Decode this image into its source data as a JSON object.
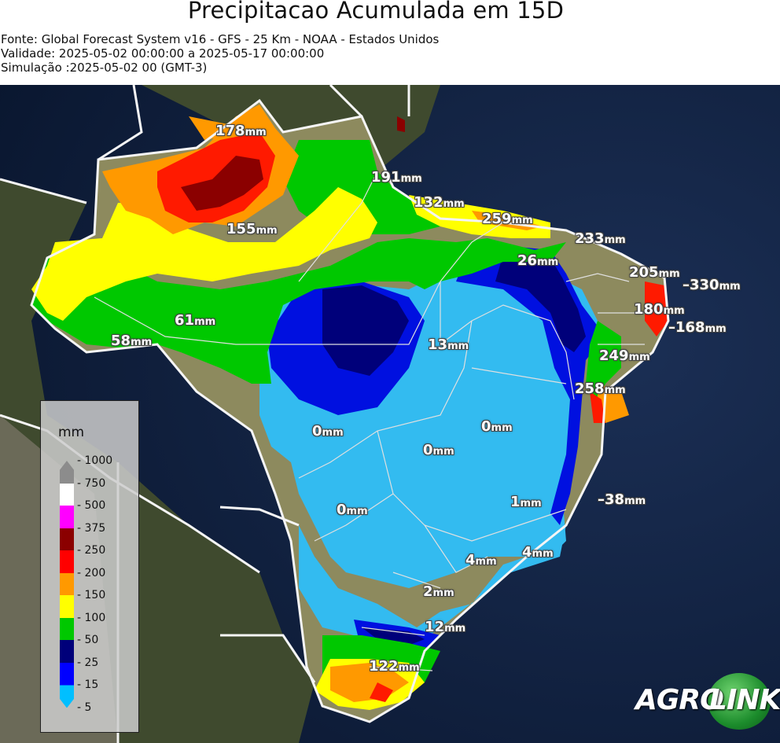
{
  "header": {
    "title": "Precipitacao Acumulada em 15D",
    "source": "Fonte: Global Forecast System v16 - GFS - 25 Km - NOAA - Estados Unidos",
    "validity": "Validade: 2025-05-02 00:00:00 a 2025-05-17 00:00:00",
    "simulation": "Simulação :2025-05-02 00 (GMT-3)"
  },
  "map": {
    "labels": [
      {
        "value": "178",
        "unit": "mm"
      },
      {
        "value": "191",
        "unit": "mm"
      },
      {
        "value": "132",
        "unit": "mm"
      },
      {
        "value": "155",
        "unit": "mm"
      },
      {
        "value": "259",
        "unit": "mm"
      },
      {
        "value": "233",
        "unit": "mm"
      },
      {
        "value": "26",
        "unit": "mm"
      },
      {
        "value": "205",
        "unit": "mm"
      },
      {
        "value": "330",
        "unit": "mm"
      },
      {
        "value": "180",
        "unit": "mm"
      },
      {
        "value": "168",
        "unit": "mm"
      },
      {
        "value": "61",
        "unit": "mm"
      },
      {
        "value": "58",
        "unit": "mm"
      },
      {
        "value": "13",
        "unit": "mm"
      },
      {
        "value": "249",
        "unit": "mm"
      },
      {
        "value": "258",
        "unit": "mm"
      },
      {
        "value": "0",
        "unit": "mm"
      },
      {
        "value": "0",
        "unit": "mm"
      },
      {
        "value": "0",
        "unit": "mm"
      },
      {
        "value": "1",
        "unit": "mm"
      },
      {
        "value": "38",
        "unit": "mm"
      },
      {
        "value": "0",
        "unit": "mm"
      },
      {
        "value": "4",
        "unit": "mm"
      },
      {
        "value": "4",
        "unit": "mm"
      },
      {
        "value": "2",
        "unit": "mm"
      },
      {
        "value": "12",
        "unit": "mm"
      },
      {
        "value": "122",
        "unit": "mm"
      }
    ]
  },
  "legend": {
    "title": "mm",
    "ticks": [
      "1000",
      "750",
      "500",
      "375",
      "250",
      "200",
      "150",
      "100",
      "50",
      "25",
      "15",
      "5"
    ],
    "colors": [
      "#8c8c8c",
      "#ffffff",
      "#ff00ff",
      "#8b0000",
      "#ff0000",
      "#ff9900",
      "#ffff00",
      "#00c800",
      "#00007a",
      "#0000ff",
      "#00bfff"
    ]
  },
  "logo": {
    "agro": "AGRO",
    "link": "LINK"
  }
}
